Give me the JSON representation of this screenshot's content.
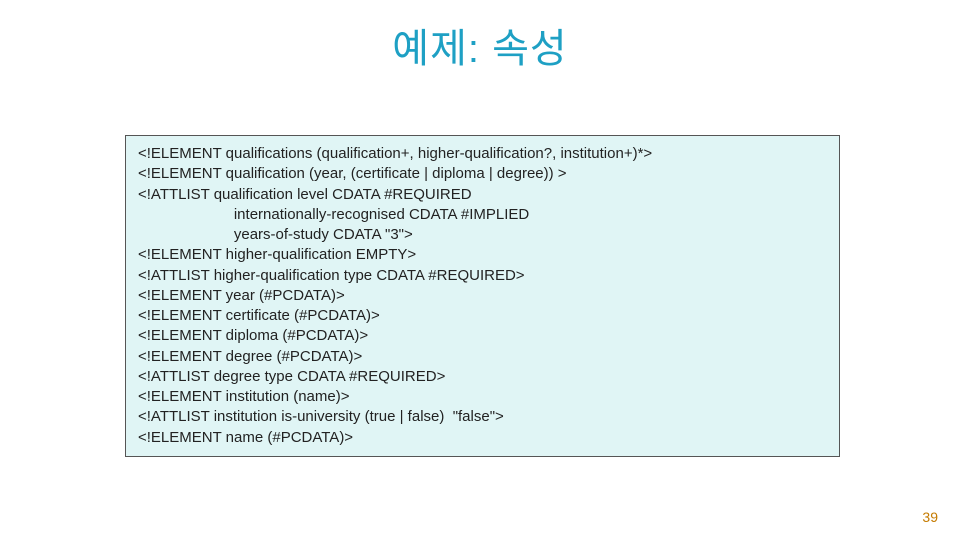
{
  "title": {
    "text": "예제: 속성",
    "color": "#1ea0c4",
    "fontsize": 40
  },
  "codebox": {
    "background_color": "#e0f5f5",
    "border_color": "#555555",
    "text_color": "#222222",
    "fontsize": 15,
    "lines": [
      "<!ELEMENT qualifications (qualification+, higher-qualification?, institution+)*>",
      "<!ELEMENT qualification (year, (certificate | diploma | degree)) >",
      "<!ATTLIST qualification level CDATA #REQUIRED",
      "                       internationally-recognised CDATA #IMPLIED",
      "                       years-of-study CDATA \"3\">",
      "<!ELEMENT higher-qualification EMPTY>",
      "<!ATTLIST higher-qualification type CDATA #REQUIRED>",
      "<!ELEMENT year (#PCDATA)>",
      "<!ELEMENT certificate (#PCDATA)>",
      "<!ELEMENT diploma (#PCDATA)>",
      "<!ELEMENT degree (#PCDATA)>",
      "<!ATTLIST degree type CDATA #REQUIRED>",
      "<!ELEMENT institution (name)>",
      "<!ATTLIST institution is-university (true | false)  \"false\">",
      "<!ELEMENT name (#PCDATA)>"
    ]
  },
  "page_number": "39",
  "page_number_color": "#c57b00"
}
